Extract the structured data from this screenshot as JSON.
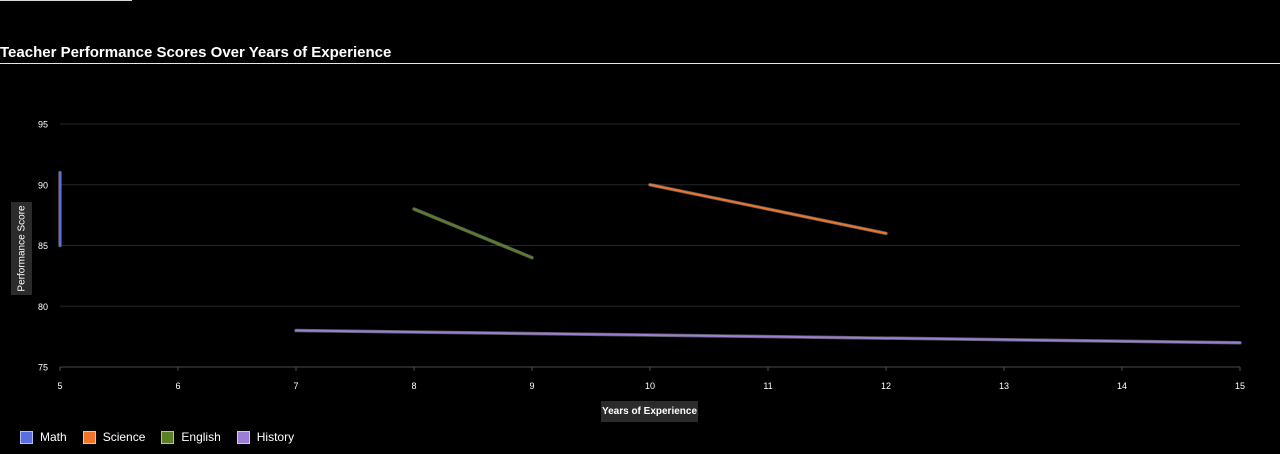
{
  "chart_data": {
    "type": "line",
    "title": "Teacher Performance Scores Over Years of Experience",
    "xlabel": "Years of Experience",
    "ylabel": "Performance Score",
    "xlim": [
      5,
      15
    ],
    "ylim": [
      75,
      95
    ],
    "x_ticks": [
      5,
      6,
      7,
      8,
      9,
      10,
      11,
      12,
      13,
      14,
      15
    ],
    "y_ticks": [
      75,
      80,
      85,
      90,
      95
    ],
    "grid": true,
    "legend_position": "bottom-left",
    "series": [
      {
        "name": "Math",
        "color": "#5b6ee1",
        "points": [
          [
            5,
            85
          ],
          [
            5,
            91
          ]
        ]
      },
      {
        "name": "Science",
        "color": "#f0742b",
        "points": [
          [
            10,
            90
          ],
          [
            12,
            86
          ]
        ]
      },
      {
        "name": "English",
        "color": "#5a7f25",
        "points": [
          [
            8,
            88
          ],
          [
            9,
            84
          ]
        ]
      },
      {
        "name": "History",
        "color": "#9b7fd4",
        "points": [
          [
            7,
            78
          ],
          [
            15,
            77
          ]
        ]
      }
    ]
  }
}
